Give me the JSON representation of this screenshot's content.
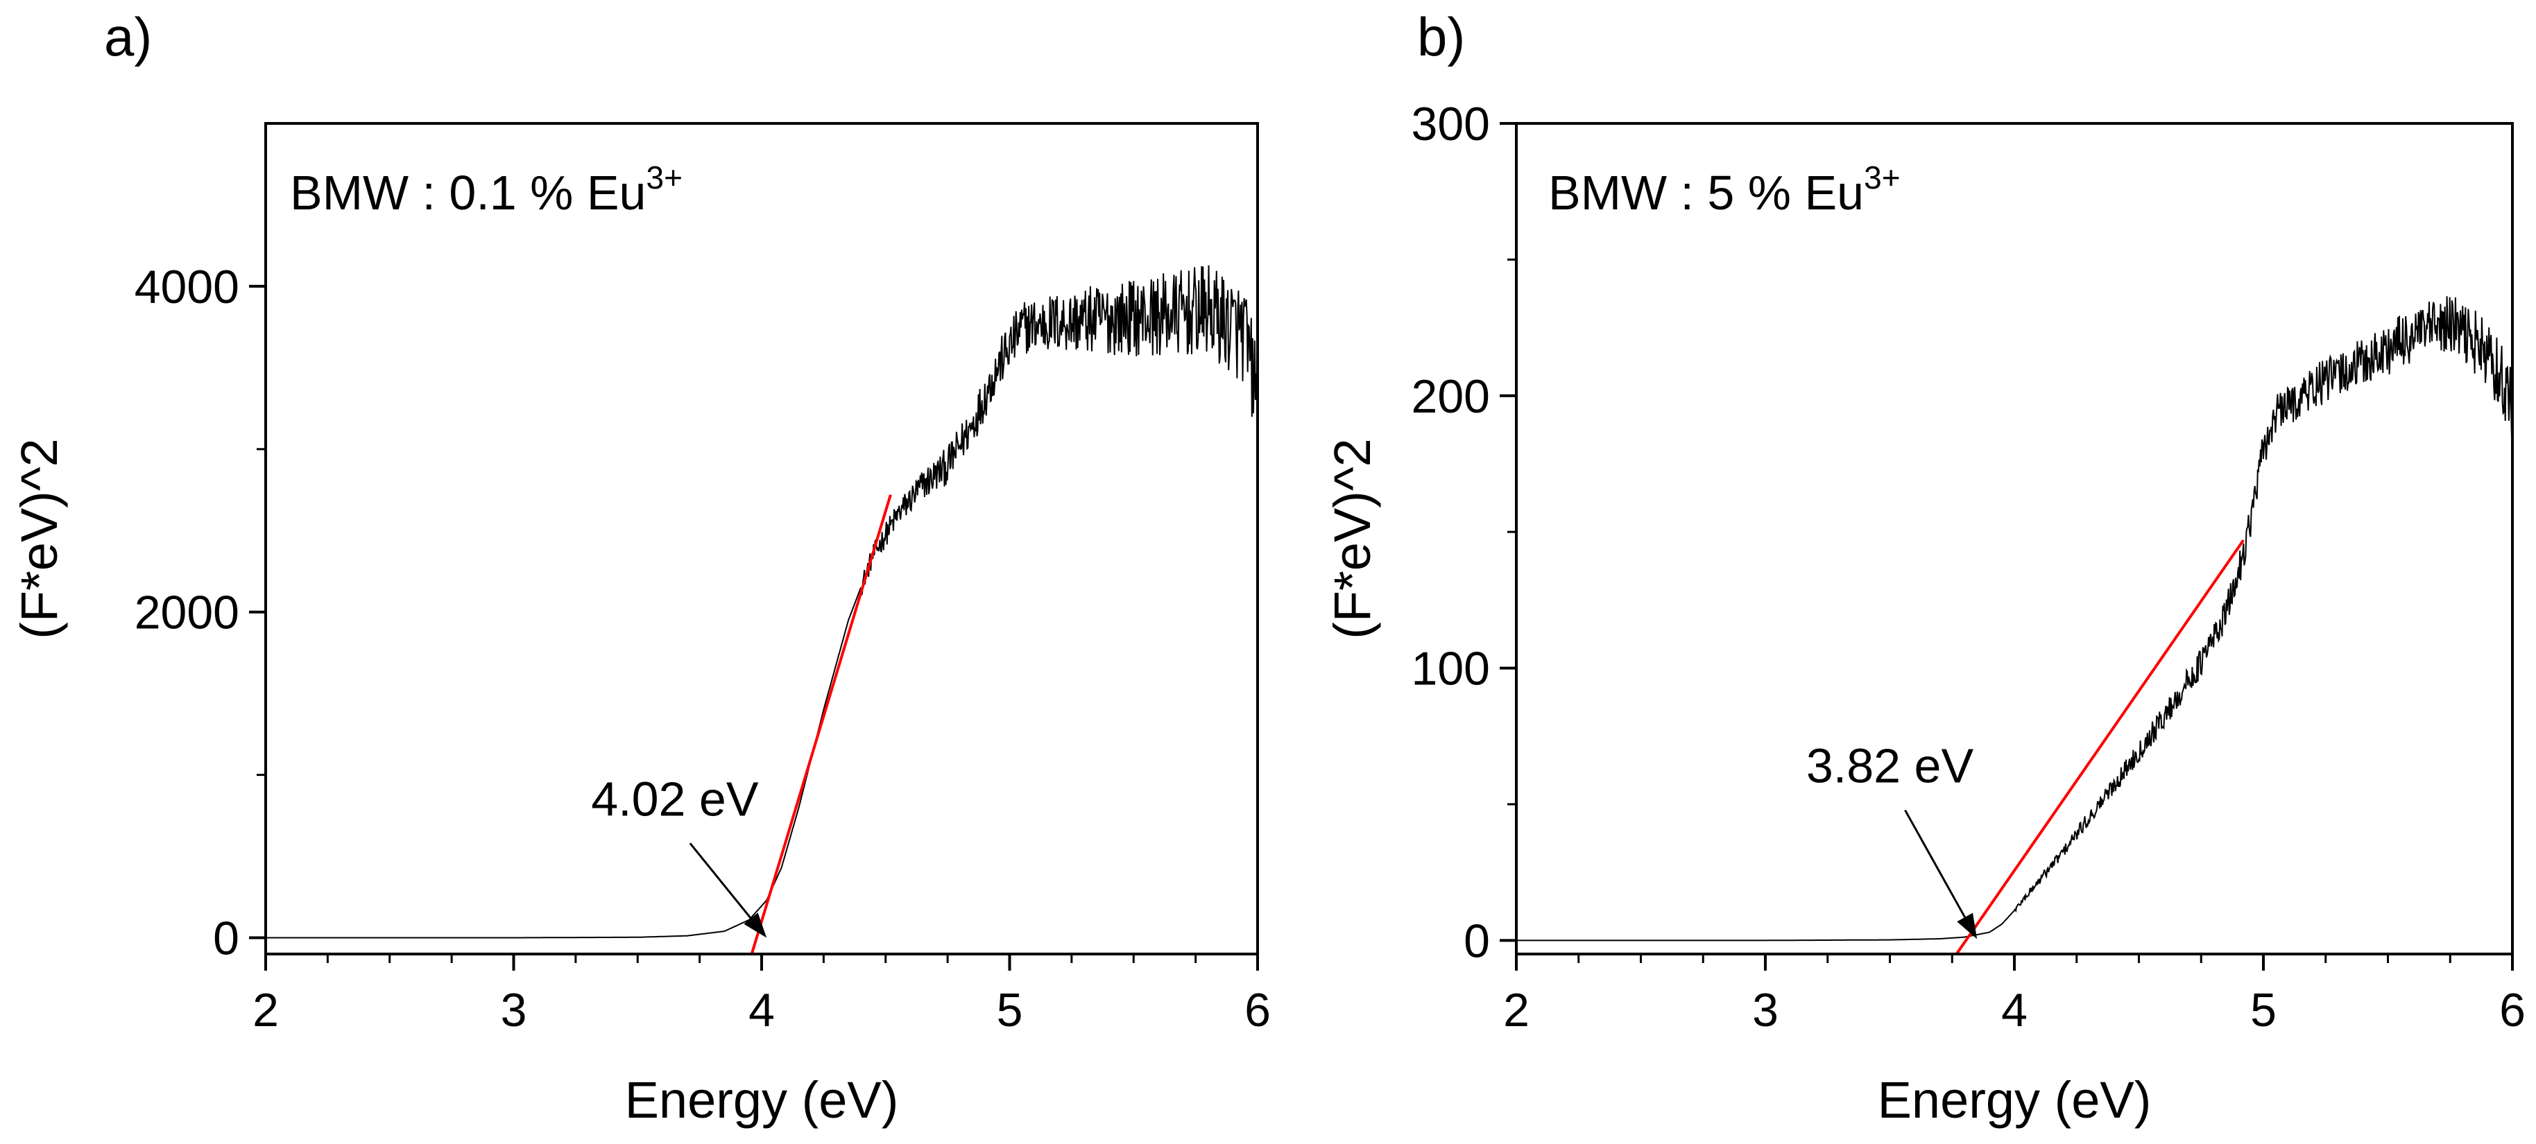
{
  "chart_data": [
    {
      "panel": "a)",
      "type": "line",
      "inset_label": {
        "base": "BMW : 0.1 % Eu",
        "sup": "3+"
      },
      "xlabel": "Energy (eV)",
      "ylabel": "(F*eV)^2",
      "xlim": [
        2,
        6
      ],
      "ylim": [
        -100,
        5000
      ],
      "xticks": [
        2,
        3,
        4,
        5,
        6
      ],
      "xtick_labels": [
        "2",
        "3",
        "4",
        "5",
        "6"
      ],
      "yticks": [
        0,
        2000,
        4000
      ],
      "ytick_labels": [
        "0",
        "2000",
        "4000"
      ],
      "series": [
        {
          "name": "data",
          "color": "#000000",
          "points": [
            [
              2.0,
              0
            ],
            [
              3.0,
              0
            ],
            [
              3.5,
              3
            ],
            [
              3.7,
              12
            ],
            [
              3.85,
              40
            ],
            [
              3.95,
              110
            ],
            [
              4.02,
              230
            ],
            [
              4.08,
              430
            ],
            [
              4.15,
              800
            ],
            [
              4.25,
              1400
            ],
            [
              4.35,
              1950
            ],
            [
              4.45,
              2350
            ],
            [
              4.55,
              2600
            ],
            [
              4.65,
              2780
            ],
            [
              4.75,
              2900
            ],
            [
              4.85,
              3150
            ],
            [
              4.95,
              3500
            ],
            [
              5.05,
              3750
            ],
            [
              5.2,
              3780
            ],
            [
              5.4,
              3800
            ],
            [
              5.6,
              3820
            ],
            [
              5.8,
              3850
            ],
            [
              5.95,
              3700
            ],
            [
              6.0,
              3300
            ]
          ],
          "noise_start": 4.4,
          "noise_amp_start": 60,
          "noise_amp_end": 320
        },
        {
          "name": "tangent",
          "color": "#ff0000",
          "points": [
            [
              3.96,
              -100
            ],
            [
              4.52,
              2720
            ]
          ]
        }
      ],
      "annotation": {
        "text": "4.02 eV",
        "x": 4.02,
        "y": 0,
        "text_x": 3.65,
        "text_y": 750
      }
    },
    {
      "panel": "b)",
      "type": "line",
      "inset_label": {
        "base": "BMW : 5 % Eu",
        "sup": "3+"
      },
      "xlabel": "Energy (eV)",
      "ylabel": "(F*eV)^2",
      "xlim": [
        2,
        6
      ],
      "ylim": [
        -5,
        300
      ],
      "xticks": [
        2,
        3,
        4,
        5,
        6
      ],
      "xtick_labels": [
        "2",
        "3",
        "4",
        "5",
        "6"
      ],
      "yticks": [
        0,
        100,
        200,
        300
      ],
      "ytick_labels": [
        "0",
        "100",
        "200",
        "300"
      ],
      "series": [
        {
          "name": "data",
          "color": "#000000",
          "points": [
            [
              2.0,
              0
            ],
            [
              3.0,
              0
            ],
            [
              3.5,
              0.2
            ],
            [
              3.7,
              0.6
            ],
            [
              3.8,
              1.2
            ],
            [
              3.9,
              3
            ],
            [
              3.95,
              6
            ],
            [
              4.0,
              11
            ],
            [
              4.2,
              33
            ],
            [
              4.4,
              57
            ],
            [
              4.6,
              82
            ],
            [
              4.75,
              102
            ],
            [
              4.85,
              120
            ],
            [
              4.9,
              135
            ],
            [
              4.95,
              155
            ],
            [
              5.0,
              180
            ],
            [
              5.05,
              193
            ],
            [
              5.2,
              203
            ],
            [
              5.4,
              212
            ],
            [
              5.6,
              222
            ],
            [
              5.75,
              226
            ],
            [
              5.85,
              220
            ],
            [
              5.95,
              208
            ],
            [
              6.0,
              196
            ]
          ],
          "noise_start": 4.0,
          "noise_amp_start": 1,
          "noise_amp_end": 13
        },
        {
          "name": "tangent",
          "color": "#ff0000",
          "points": [
            [
              3.76,
              -6
            ],
            [
              4.92,
              147
            ]
          ]
        }
      ],
      "annotation": {
        "text": "3.82 eV",
        "x": 3.85,
        "y": 0.5,
        "text_x": 3.5,
        "text_y": 58
      }
    }
  ]
}
